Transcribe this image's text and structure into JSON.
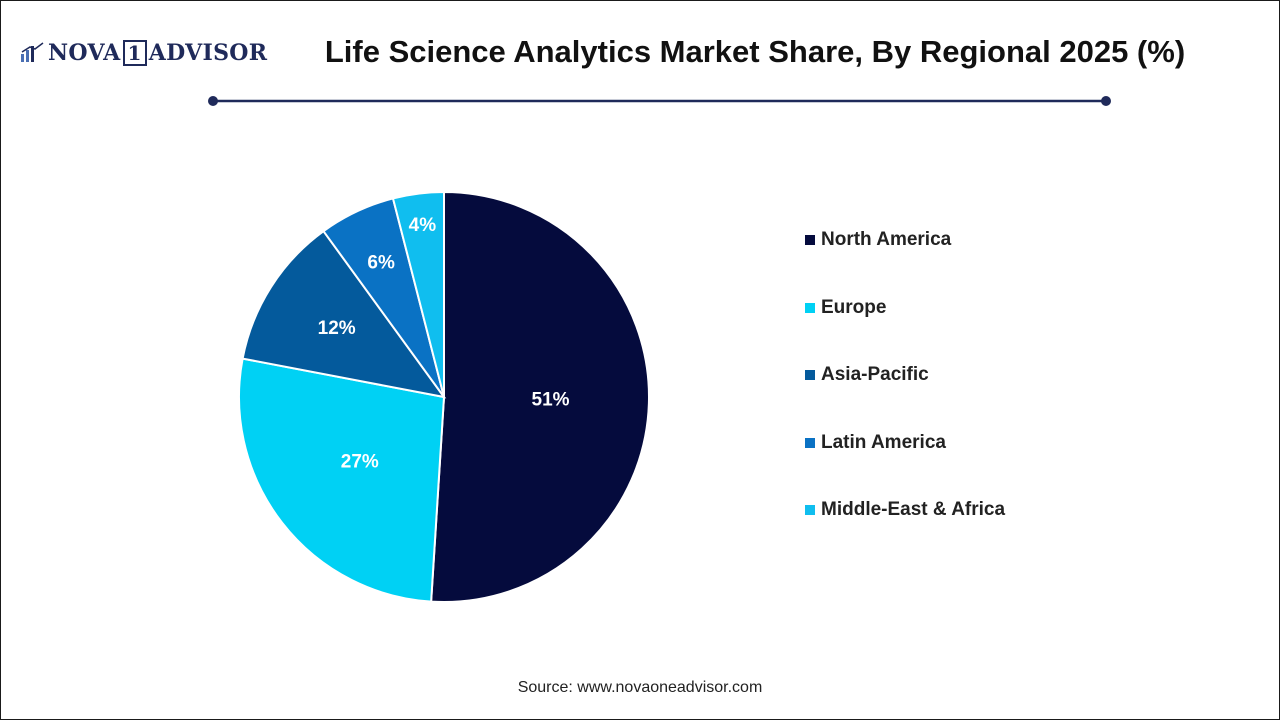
{
  "brand": {
    "logo_part1": "NOVA",
    "logo_box": "1",
    "logo_part2": "ADVISOR"
  },
  "colors": {
    "navy": "#050B3D",
    "cyan": "#00D1F4",
    "dark_blue": "#045A9C",
    "mid_blue": "#0A72C4",
    "light_cyan": "#10BEEF",
    "rule": "#1f2a5a"
  },
  "chart_data": {
    "type": "pie",
    "title": "Life Science Analytics Market Share, By Regional 2025 (%)",
    "categories": [
      "North America",
      "Europe",
      "Asia-Pacific",
      "Latin America",
      "Middle-East & Africa"
    ],
    "values": [
      51,
      27,
      12,
      6,
      4
    ],
    "data_labels": [
      "51%",
      "27%",
      "12%",
      "6%",
      "4%"
    ],
    "slice_colors": [
      "#050B3D",
      "#00D1F4",
      "#045A9C",
      "#0A72C4",
      "#10BEEF"
    ],
    "start": "12 o'clock, clockwise",
    "legend_position": "right"
  },
  "source": "Source: www.novaoneadvisor.com"
}
